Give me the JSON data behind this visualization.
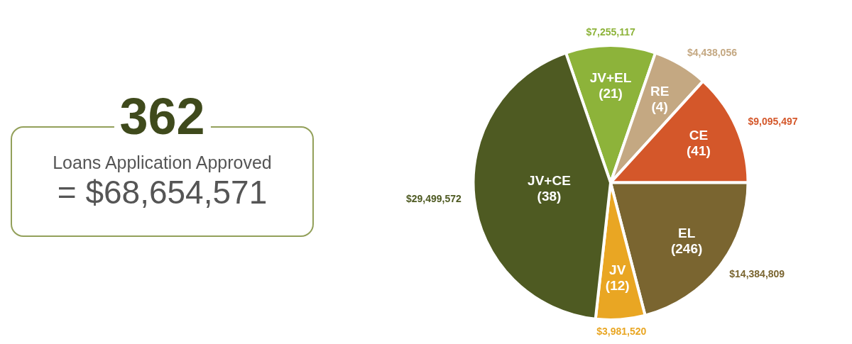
{
  "chart_data": [
    {
      "type": "other",
      "title": "362",
      "subtitle": "Loans Application Approved",
      "annotations": [
        "= $68,654,571"
      ]
    },
    {
      "type": "pie",
      "categories": [
        "JV+EL (21)",
        "RE (4)",
        "CE (41)",
        "EL (246)",
        "JV (12)",
        "JV+CE (38)"
      ],
      "values": [
        7255117,
        4438056,
        9095497,
        14384809,
        3981520,
        29499572
      ],
      "colors": [
        "#8db33a",
        "#c4a882",
        "#d4572a",
        "#7a6530",
        "#e9a623",
        "#4e5a22"
      ],
      "value_labels": [
        "$7,255,117",
        "$4,438,056",
        "$9,095,497",
        "$14,384,809",
        "$3,981,520",
        "$29,499,572"
      ]
    }
  ]
}
